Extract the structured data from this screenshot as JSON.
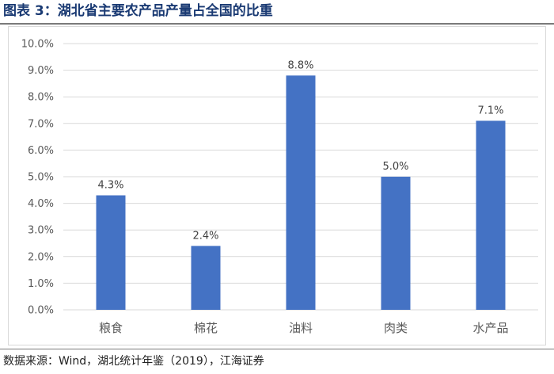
{
  "title": "图表 3：湖北省主要农产品产量占全国的比重",
  "source": "数据来源：Wind，湖北统计年鉴（2019），江海证券",
  "colors": {
    "bar": "#4472c4",
    "grid": "#d9d9d9",
    "axis_text": "#595959",
    "label_text": "#404040",
    "title": "#1a3a73"
  },
  "chart_data": {
    "type": "bar",
    "categories": [
      "粮食",
      "棉花",
      "油料",
      "肉类",
      "水产品"
    ],
    "values": [
      4.3,
      2.4,
      8.8,
      5.0,
      7.1
    ],
    "value_labels": [
      "4.3%",
      "2.4%",
      "8.8%",
      "5.0%",
      "7.1%"
    ],
    "ylim": [
      0,
      10
    ],
    "yticks": [
      0,
      1,
      2,
      3,
      4,
      5,
      6,
      7,
      8,
      9,
      10
    ],
    "ytick_labels": [
      "0.0%",
      "1.0%",
      "2.0%",
      "3.0%",
      "4.0%",
      "5.0%",
      "6.0%",
      "7.0%",
      "8.0%",
      "9.0%",
      "10.0%"
    ],
    "grid": true,
    "legend": "none",
    "xlabel": "",
    "ylabel": ""
  }
}
